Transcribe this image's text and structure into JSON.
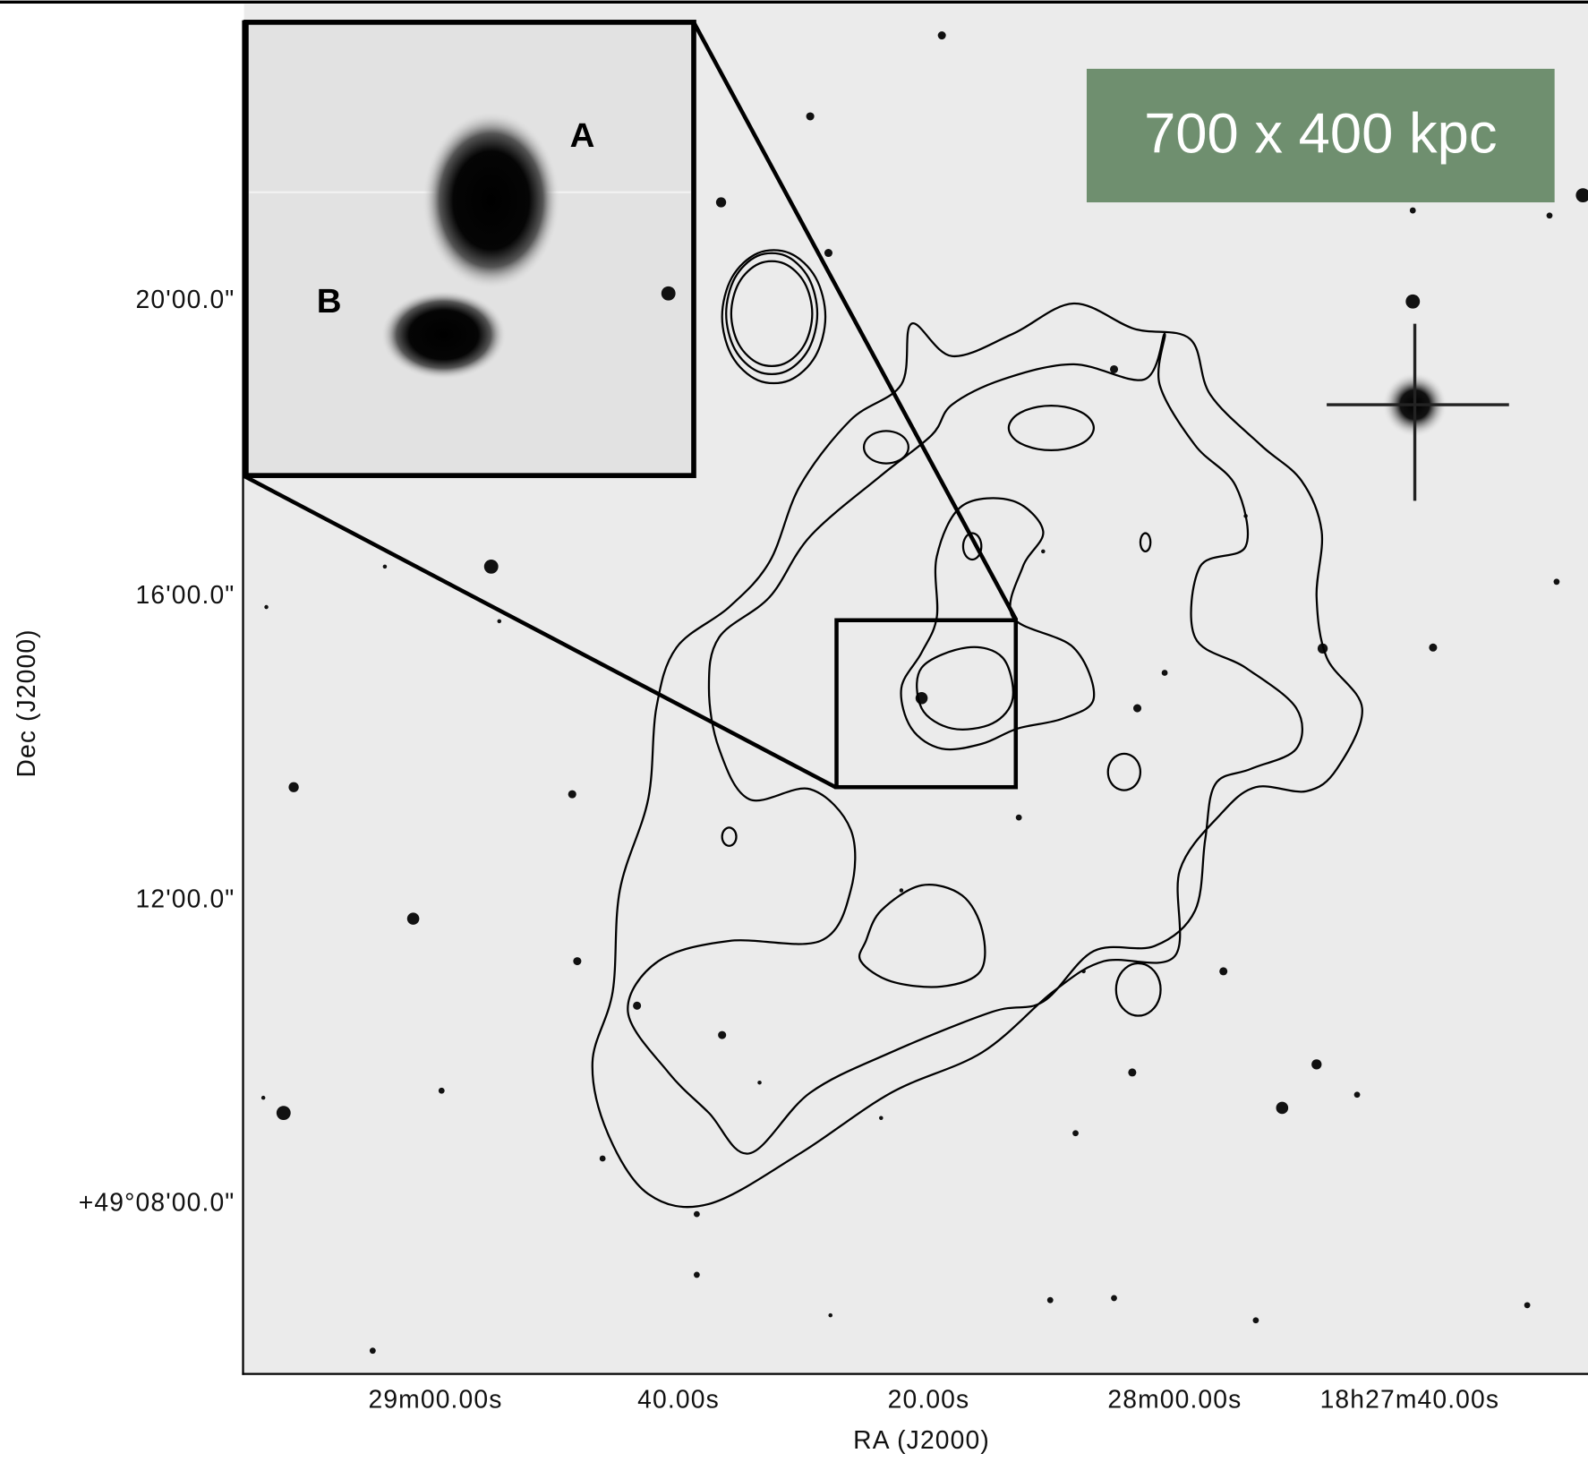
{
  "axes": {
    "x_label": "RA (J2000)",
    "y_label": "Dec (J2000)",
    "x_ticks": [
      "29m00.00s",
      "40.00s",
      "20.00s",
      "28m00.00s",
      "18h27m40.00s"
    ],
    "y_ticks": [
      "20'00.0\"",
      "16'00.0\"",
      "12'00.0\"",
      "+49°08'00.0\""
    ]
  },
  "inset": {
    "labels": [
      "A",
      "B"
    ]
  },
  "annotation": "700 x 400 kpc"
}
